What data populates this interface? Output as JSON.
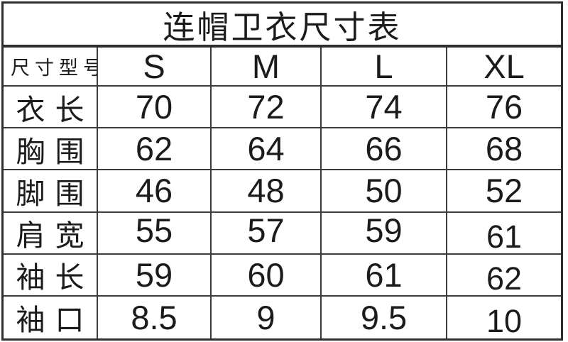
{
  "chart_data": {
    "type": "table",
    "title": "连帽卫衣尺寸表",
    "header": {
      "label": "尺寸型号",
      "sizes": [
        "S",
        "M",
        "L",
        "XL"
      ]
    },
    "rows": [
      {
        "label": "衣长",
        "values": [
          "70",
          "72",
          "74",
          "76"
        ]
      },
      {
        "label": "胸围",
        "values": [
          "62",
          "64",
          "66",
          "68"
        ]
      },
      {
        "label": "脚围",
        "values": [
          "46",
          "48",
          "50",
          "52"
        ]
      },
      {
        "label": "肩宽",
        "values": [
          "55",
          "57",
          "59",
          "61"
        ]
      },
      {
        "label": "袖长",
        "values": [
          "59",
          "60",
          "61",
          "62"
        ]
      },
      {
        "label": "袖口",
        "values": [
          "8.5",
          "9",
          "9.5",
          "10"
        ]
      }
    ]
  },
  "colors": {
    "background": "#ffffff",
    "grid_border": "#3c3c3c",
    "outer_border": "#2e2e2e",
    "text": "#1b1b1b"
  }
}
